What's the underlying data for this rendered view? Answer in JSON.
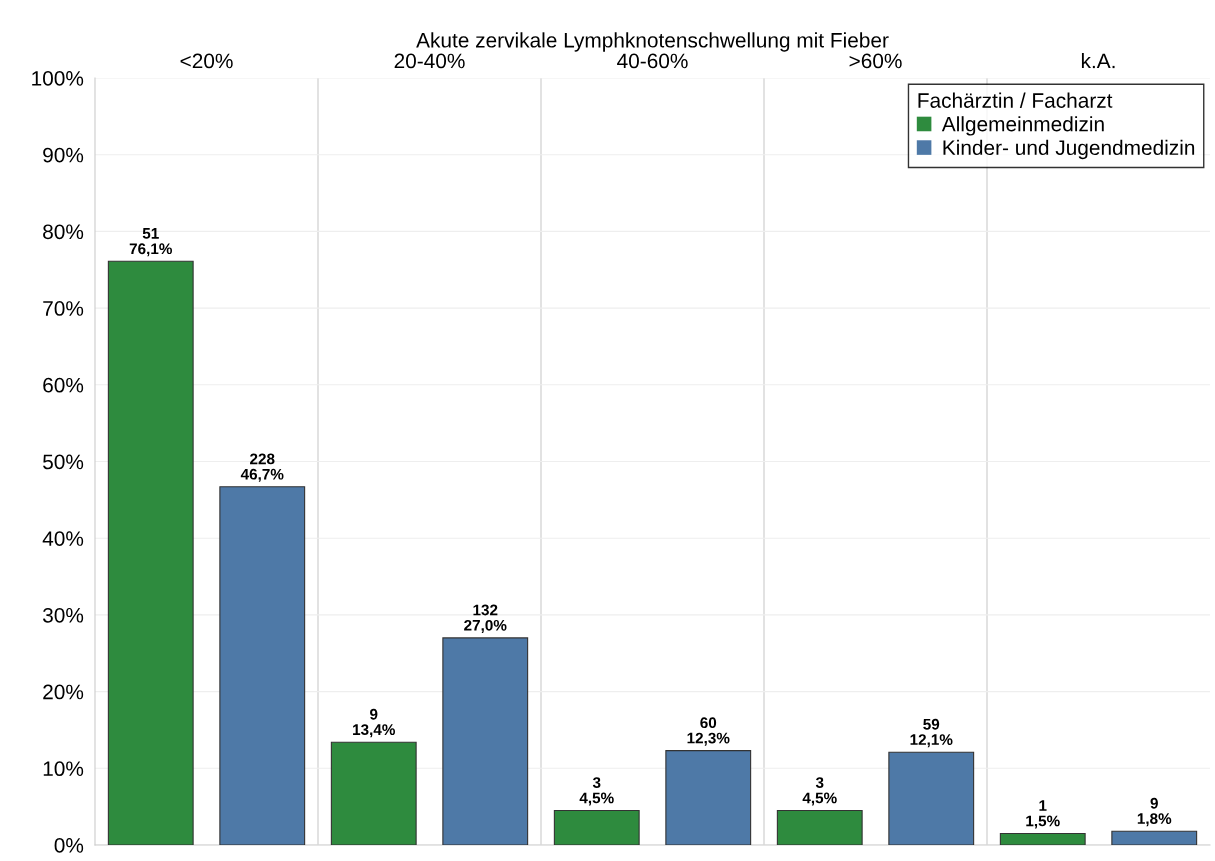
{
  "chart_data": {
    "type": "bar",
    "title": "Akute zervikale Lymphknotenschwellung mit Fieber",
    "categories": [
      "<20%",
      "20-40%",
      "40-60%",
      ">60%",
      "k.A."
    ],
    "series": [
      {
        "name": "Allgemeinmedizin",
        "color": "#2e8b3e",
        "values": [
          76.1,
          13.4,
          4.5,
          4.5,
          1.5
        ],
        "value_labels": [
          "51\n76,1%",
          "9\n13,4%",
          "3\n4,5%",
          "3\n4,5%",
          "1\n1,5%"
        ]
      },
      {
        "name": "Kinder- und Jugendmedizin",
        "color": "#4e79a7",
        "values": [
          46.7,
          27.0,
          12.3,
          12.1,
          1.8
        ],
        "value_labels": [
          "228\n46,7%",
          "132\n27,0%",
          "60\n12,3%",
          "59\n12,1%",
          "9\n1,8%"
        ]
      }
    ],
    "legend_title": "Fachärztin / Facharzt",
    "legend": "top right",
    "ylim": [
      0,
      100
    ],
    "yticks": [
      {
        "value": 0,
        "label": "0%"
      },
      {
        "value": 10,
        "label": "10%"
      },
      {
        "value": 20,
        "label": "20%"
      },
      {
        "value": 30,
        "label": "30%"
      },
      {
        "value": 40,
        "label": "40%"
      },
      {
        "value": 50,
        "label": "50%"
      },
      {
        "value": 60,
        "label": "60%"
      },
      {
        "value": 70,
        "label": "70%"
      },
      {
        "value": 80,
        "label": "80%"
      },
      {
        "value": 90,
        "label": "90%"
      },
      {
        "value": 100,
        "label": "100%"
      }
    ],
    "grid": "y"
  }
}
